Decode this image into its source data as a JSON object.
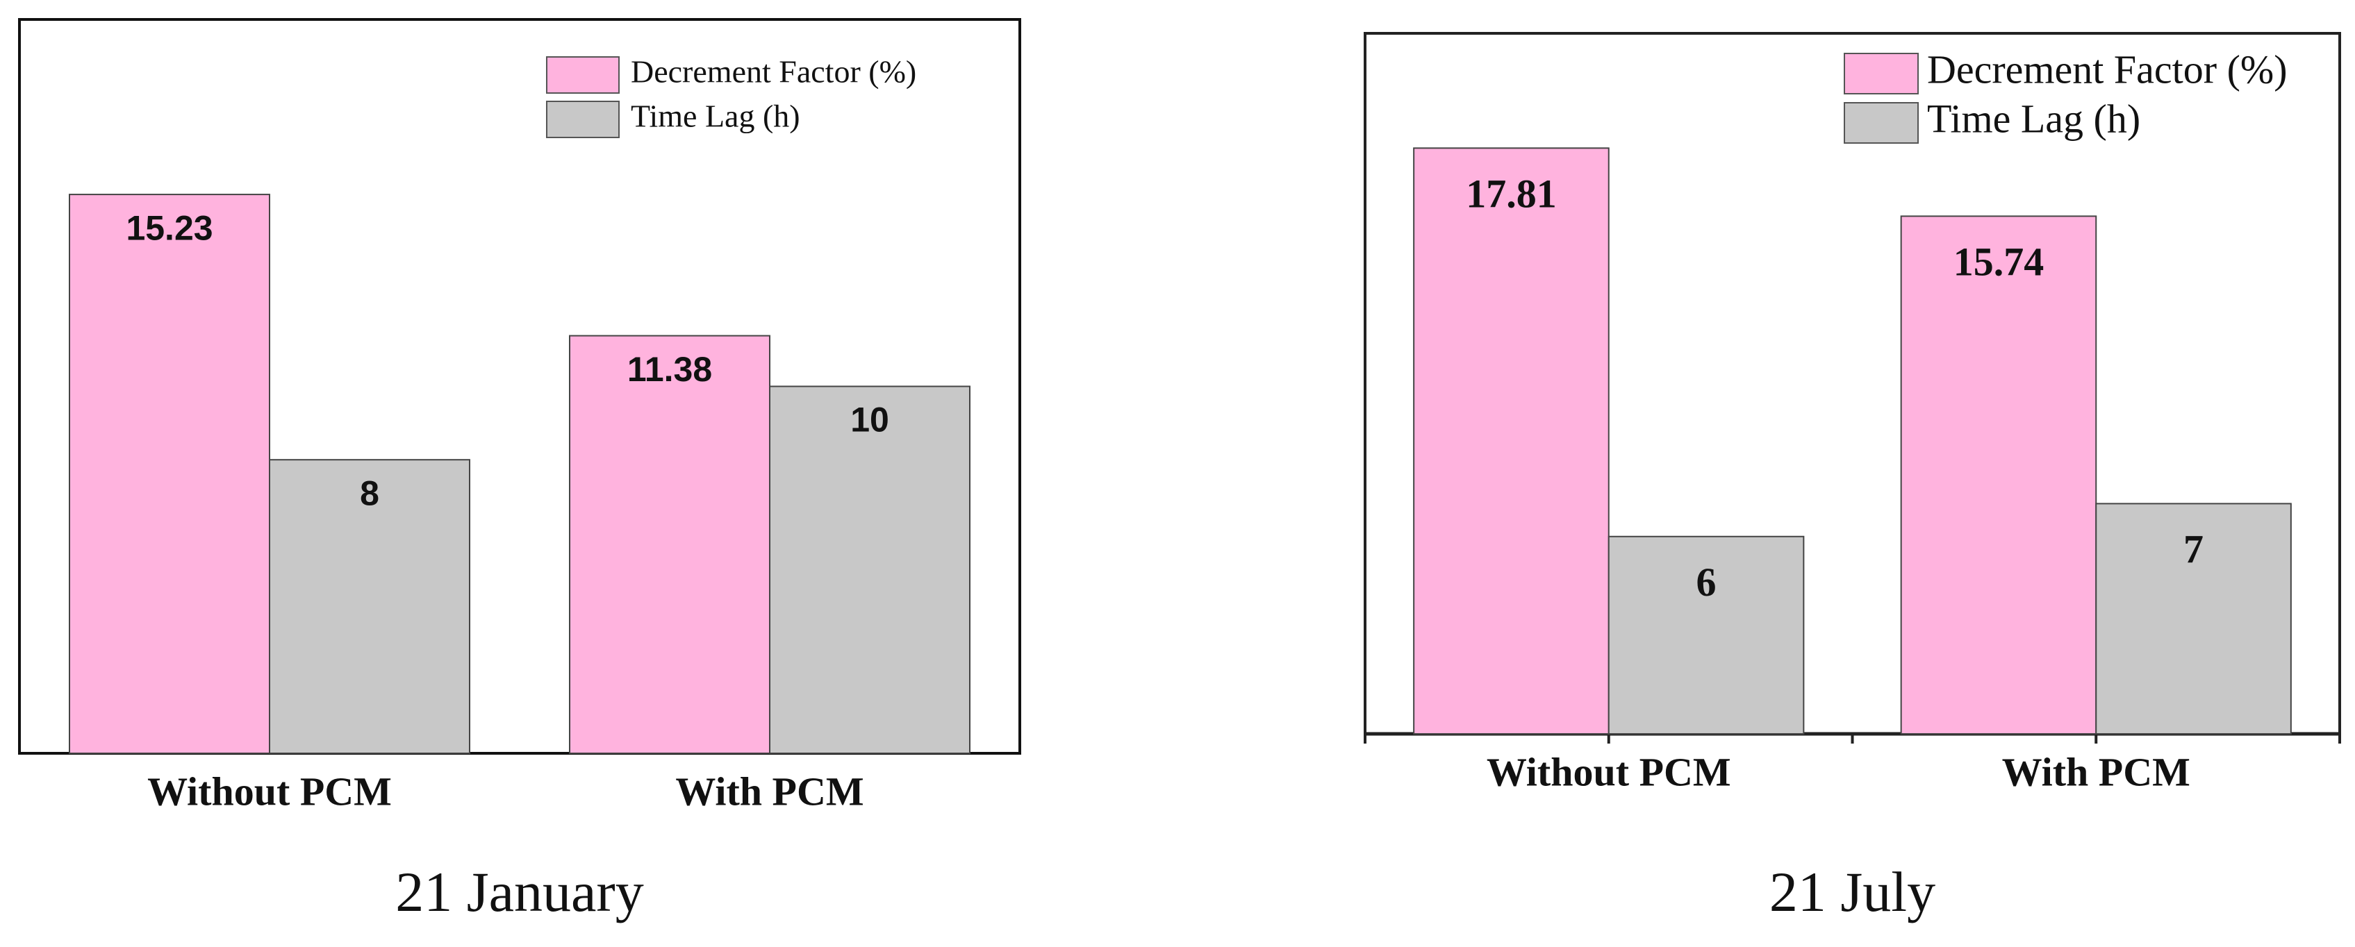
{
  "chart_data": [
    {
      "type": "bar",
      "caption": "21 January",
      "categories": [
        "Without PCM",
        "With PCM"
      ],
      "series": [
        {
          "name": "Decrement Factor (%)",
          "color": "#ffb3de",
          "values": [
            15.23,
            11.38
          ]
        },
        {
          "name": "Time Lag (h)",
          "color": "#c8c8c8",
          "values": [
            8,
            10
          ]
        }
      ],
      "ylim": [
        0,
        20
      ],
      "legend": "upper right"
    },
    {
      "type": "bar",
      "caption": "21 July",
      "categories": [
        "Without PCM",
        "With PCM"
      ],
      "series": [
        {
          "name": "Decrement Factor (%)",
          "color": "#ffb3de",
          "values": [
            17.81,
            15.74
          ]
        },
        {
          "name": "Time Lag (h)",
          "color": "#c8c8c8",
          "values": [
            6,
            7
          ]
        }
      ],
      "ylim": [
        0,
        21.3
      ],
      "legend": "upper right"
    }
  ]
}
